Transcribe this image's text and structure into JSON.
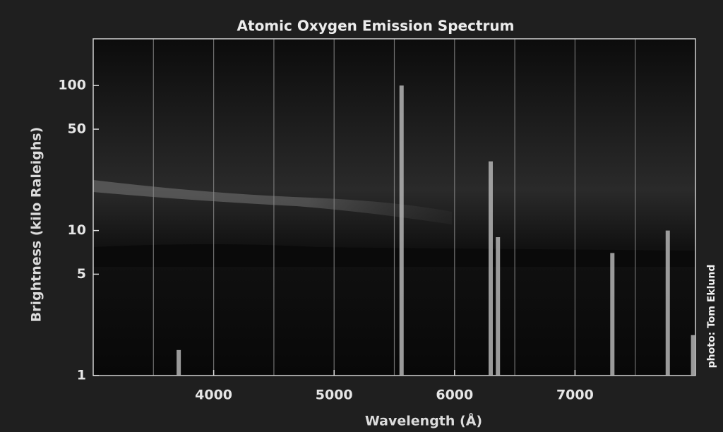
{
  "chart_data": {
    "type": "bar",
    "title": "Atomic Oxygen Emission Spectrum",
    "x_label": "Wavelength (Å)",
    "y_label": "Brightness (kilo Raleighs)",
    "credit": "photo: Tom Eklund",
    "x": [
      3710,
      5560,
      6300,
      6360,
      7310,
      7770,
      7980
    ],
    "values": [
      1.5,
      100,
      30,
      9,
      7,
      10,
      1.9
    ],
    "color": "#b4b4b4",
    "xlim": [
      3000,
      8000
    ],
    "xticks": [
      4000,
      5000,
      6000,
      7000
    ],
    "x_gridlines": [
      3500,
      4000,
      4500,
      5000,
      5500,
      6000,
      6500,
      7000,
      7500
    ],
    "ylim": [
      1,
      210
    ],
    "yticks": [
      1,
      5,
      10,
      50,
      100
    ],
    "log_y": true,
    "grid": true
  }
}
